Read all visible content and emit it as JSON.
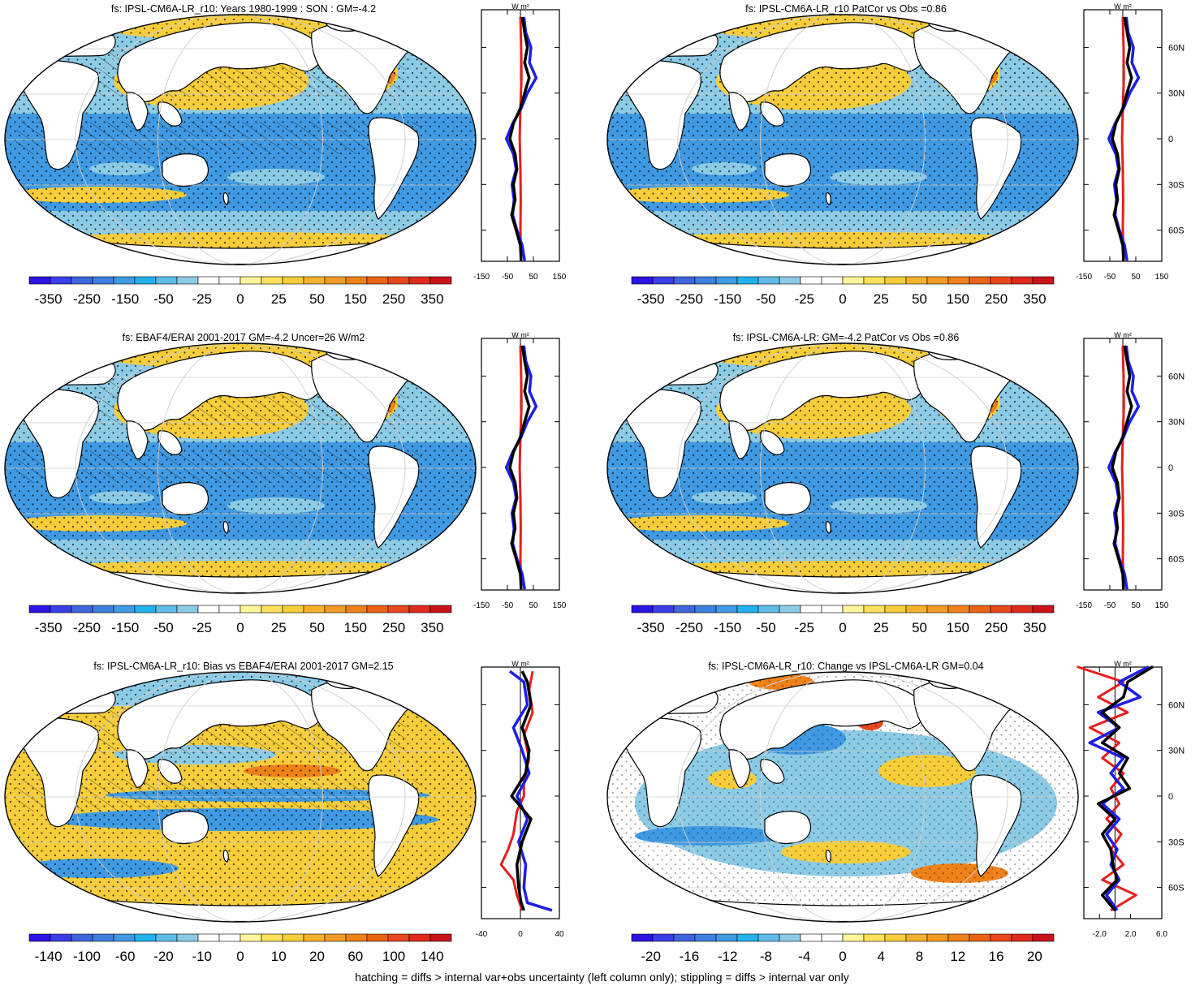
{
  "panels": [
    {
      "title": "fs: IPSL-CM6A-LR_r10: Years 1980-1999 : SON : GM=-4.2",
      "map_style": "mean",
      "hatching": true,
      "colorbar_labels": [
        "-350",
        "-250",
        "-150",
        "-50",
        "-25",
        "0",
        "25",
        "50",
        "150",
        "250",
        "350"
      ],
      "zonal_xticks": [
        "-150",
        "-50",
        "50",
        "150"
      ],
      "zonal_xlim": [
        -150,
        150
      ],
      "zonal_lat_labels": [
        "60N",
        "30N",
        "0",
        "30S",
        "60S"
      ],
      "zonal_lat_labels_visible": false,
      "zonal_unit": "W m²"
    },
    {
      "title": "fs: IPSL-CM6A-LR_r10 PatCor vs Obs =0.86",
      "map_style": "mean",
      "hatching": false,
      "colorbar_labels": [
        "-350",
        "-250",
        "-150",
        "-50",
        "-25",
        "0",
        "25",
        "50",
        "150",
        "250",
        "350"
      ],
      "zonal_xticks": [
        "-150",
        "-50",
        "50",
        "150"
      ],
      "zonal_xlim": [
        -150,
        150
      ],
      "zonal_lat_labels": [
        "60N",
        "30N",
        "0",
        "30S",
        "60S"
      ],
      "zonal_lat_labels_visible": true,
      "zonal_unit": "W m²"
    },
    {
      "title": "fs: EBAF4/ERAI 2001-2017 GM=-4.2 Uncer=26 W/m2",
      "map_style": "mean",
      "hatching": true,
      "colorbar_labels": [
        "-350",
        "-250",
        "-150",
        "-50",
        "-25",
        "0",
        "25",
        "50",
        "150",
        "250",
        "350"
      ],
      "zonal_xticks": [
        "-150",
        "-50",
        "50",
        "150"
      ],
      "zonal_xlim": [
        -150,
        150
      ],
      "zonal_lat_labels": [
        "60N",
        "30N",
        "0",
        "30S",
        "60S"
      ],
      "zonal_lat_labels_visible": false,
      "zonal_unit": "W m²"
    },
    {
      "title": "fs: IPSL-CM6A-LR: GM=-4.2 PatCor vs Obs =0.86",
      "map_style": "mean",
      "hatching": false,
      "colorbar_labels": [
        "-350",
        "-250",
        "-150",
        "-50",
        "-25",
        "0",
        "25",
        "50",
        "150",
        "250",
        "350"
      ],
      "zonal_xticks": [
        "-150",
        "-50",
        "50",
        "150"
      ],
      "zonal_xlim": [
        -150,
        150
      ],
      "zonal_lat_labels": [
        "60N",
        "30N",
        "0",
        "30S",
        "60S"
      ],
      "zonal_lat_labels_visible": true,
      "zonal_unit": "W m²"
    },
    {
      "title": "fs: IPSL-CM6A-LR_r10: Bias vs EBAF4/ERAI 2001-2017  GM=2.15",
      "map_style": "bias",
      "hatching": true,
      "colorbar_labels": [
        "-140",
        "-100",
        "-60",
        "-20",
        "-10",
        "0",
        "10",
        "20",
        "60",
        "100",
        "140"
      ],
      "zonal_xticks": [
        "-40",
        "0",
        "40"
      ],
      "zonal_xlim": [
        -40,
        40
      ],
      "zonal_lat_labels": [
        "60N",
        "30N",
        "0",
        "30S",
        "60S"
      ],
      "zonal_lat_labels_visible": false,
      "zonal_unit": "W m²"
    },
    {
      "title": "fs: IPSL-CM6A-LR_r10: Change vs IPSL-CM6A-LR GM=0.04",
      "map_style": "change",
      "hatching": false,
      "colorbar_labels": [
        "-20",
        "-16",
        "-12",
        "-8",
        "-4",
        "0",
        "4",
        "8",
        "12",
        "16",
        "20"
      ],
      "zonal_xticks": [
        "-2.0",
        "2.0",
        "6.0"
      ],
      "zonal_xlim": [
        -4,
        6
      ],
      "zonal_lat_labels": [
        "60N",
        "30N",
        "0",
        "30S",
        "60S"
      ],
      "zonal_lat_labels_visible": true,
      "zonal_unit": "W m²"
    }
  ],
  "colorbar_colors": [
    "#2b13e3",
    "#3a3ee8",
    "#3f65dc",
    "#3e80dd",
    "#3f9ae3",
    "#23b2ee",
    "#5fbce8",
    "#8bcbe6",
    "#ffffff",
    "#ffffff",
    "#fff59a",
    "#fbe25a",
    "#f7cd3a",
    "#f4b22c",
    "#f29b24",
    "#ef8119",
    "#eb6416",
    "#e8481d",
    "#e02b1c",
    "#c8141a"
  ],
  "map_colors": {
    "land": "#ffffff",
    "ocean_neg": "#3f9ae3",
    "ocean_neg_light": "#8bcbe6",
    "ocean_pos": "#f7cd3a",
    "ocean_pos_strong": "#ef8119",
    "ocean_pos_max": "#e8481d"
  },
  "zonal_series_colors": {
    "model": "#000000",
    "obs": "#1e1ee6",
    "change": "#e61e1e"
  },
  "footer": "hatching = diffs > internal var+obs uncertainty (left column only); stippling = diffs > internal var only"
}
